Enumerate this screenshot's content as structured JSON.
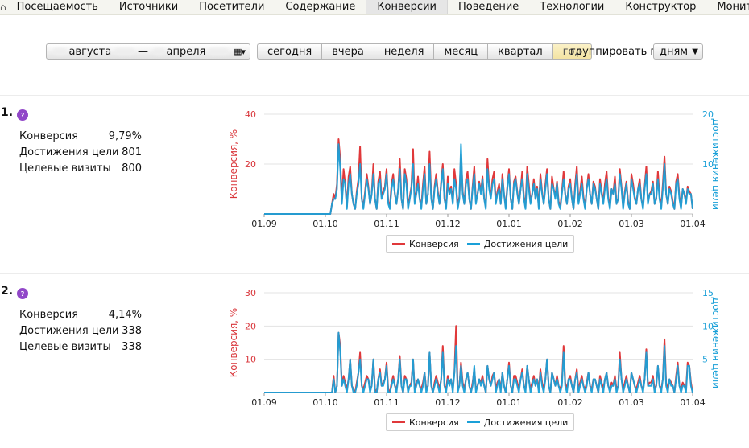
{
  "nav": {
    "tabs": [
      {
        "label": "Посещаемость"
      },
      {
        "label": "Источники"
      },
      {
        "label": "Посетители"
      },
      {
        "label": "Содержание"
      },
      {
        "label": "Конверсии",
        "active": true
      },
      {
        "label": "Поведение"
      },
      {
        "label": "Технологии"
      },
      {
        "label": "Конструктор"
      },
      {
        "label": "Мониторинг"
      }
    ]
  },
  "filters": {
    "range_from_month": "августа",
    "range_dash": "—",
    "range_to_month": "апреля",
    "presets": [
      {
        "label": "сегодня"
      },
      {
        "label": "вчера"
      },
      {
        "label": "неделя"
      },
      {
        "label": "месяц"
      },
      {
        "label": "квартал"
      },
      {
        "label": "год",
        "active": true
      }
    ],
    "group_label": "группировать по",
    "group_value": "дням"
  },
  "goals": [
    {
      "number": "1.",
      "badge": "?",
      "metrics": [
        {
          "label": "Конверсия",
          "value": "9,79%"
        },
        {
          "label": "Достижения цели",
          "value": "801"
        },
        {
          "label": "Целевые визиты",
          "value": "800"
        }
      ]
    },
    {
      "number": "2.",
      "badge": "?",
      "metrics": [
        {
          "label": "Конверсия",
          "value": "4,14%"
        },
        {
          "label": "Достижения цели",
          "value": "338"
        },
        {
          "label": "Целевые визиты",
          "value": "338"
        }
      ]
    }
  ],
  "colors": {
    "conversion": "#e0383a",
    "goals": "#1aa0d8"
  },
  "chart_data": [
    {
      "type": "line",
      "x_ticks": [
        "01.09",
        "01.10",
        "01.11",
        "01.12",
        "01.01",
        "01.02",
        "01.03",
        "01.04"
      ],
      "ylabel": "Конверсия, %",
      "y2label": "Достижения цели",
      "ylim": [
        0,
        40
      ],
      "y2lim": [
        0,
        20
      ],
      "y_ticks": [
        "40",
        "20"
      ],
      "y2_ticks": [
        "20",
        "10"
      ],
      "legend": "bottom",
      "series": [
        {
          "name": "Конверсия",
          "axis": "left",
          "color": "#e0383a",
          "values": [
            0,
            0,
            0,
            0,
            0,
            0,
            0,
            0,
            0,
            0,
            0,
            0,
            0,
            0,
            0,
            0,
            0,
            0,
            0,
            0,
            0,
            0,
            0,
            0,
            0,
            0,
            0,
            0,
            0,
            0,
            0,
            0,
            0,
            0,
            0,
            0,
            0,
            0,
            0,
            0,
            0,
            4,
            8,
            6,
            12,
            30,
            22,
            5,
            18,
            12,
            3,
            15,
            19,
            8,
            4,
            2,
            9,
            14,
            27,
            6,
            3,
            9,
            16,
            11,
            4,
            8,
            20,
            6,
            2,
            13,
            17,
            7,
            9,
            11,
            18,
            5,
            3,
            12,
            16,
            8,
            4,
            10,
            22,
            6,
            2,
            18,
            14,
            3,
            7,
            11,
            26,
            5,
            9,
            15,
            6,
            3,
            12,
            19,
            4,
            8,
            25,
            7,
            2,
            11,
            16,
            9,
            4,
            13,
            20,
            6,
            3,
            15,
            8,
            11,
            5,
            18,
            12,
            3,
            7,
            24,
            9,
            4,
            14,
            17,
            6,
            2,
            11,
            19,
            5,
            8,
            13,
            9,
            15,
            6,
            3,
            22,
            11,
            7,
            14,
            17,
            5,
            9,
            12,
            4,
            16,
            8,
            3,
            11,
            18,
            6,
            2,
            13,
            15,
            9,
            4,
            10,
            17,
            7,
            3,
            19,
            12,
            5,
            8,
            14,
            6,
            11,
            3,
            16,
            9,
            4,
            12,
            18,
            6,
            2,
            15,
            10,
            7,
            13,
            5,
            3,
            9,
            17,
            8,
            4,
            11,
            14,
            6,
            2,
            12,
            19,
            5,
            9,
            15,
            7,
            3,
            10,
            16,
            8,
            4,
            13,
            11,
            6,
            2,
            14,
            9,
            5,
            12,
            17,
            7,
            3,
            10,
            8,
            15,
            4,
            6,
            18,
            11,
            3,
            9,
            13,
            5,
            2,
            16,
            12,
            7,
            4,
            10,
            14,
            6,
            3,
            11,
            19,
            5,
            8,
            9,
            13,
            4,
            6,
            17,
            7,
            3,
            12,
            23,
            8,
            4,
            11,
            9,
            5,
            2,
            13,
            16,
            7,
            3,
            10,
            8,
            5,
            11,
            9,
            8,
            2
          ]
        },
        {
          "name": "Достижения цели",
          "axis": "right",
          "color": "#1aa0d8",
          "values": [
            0,
            0,
            0,
            0,
            0,
            0,
            0,
            0,
            0,
            0,
            0,
            0,
            0,
            0,
            0,
            0,
            0,
            0,
            0,
            0,
            0,
            0,
            0,
            0,
            0,
            0,
            0,
            0,
            0,
            0,
            0,
            0,
            0,
            0,
            0,
            0,
            0,
            0,
            0,
            0,
            0,
            2,
            3,
            3,
            5,
            14,
            9,
            2,
            7,
            6,
            1,
            6,
            8,
            4,
            2,
            1,
            4,
            6,
            10,
            3,
            1,
            4,
            7,
            5,
            2,
            4,
            8,
            3,
            1,
            6,
            7,
            3,
            4,
            5,
            8,
            2,
            1,
            5,
            7,
            4,
            2,
            5,
            9,
            3,
            1,
            8,
            6,
            1,
            3,
            5,
            10,
            2,
            4,
            6,
            3,
            1,
            5,
            8,
            2,
            4,
            10,
            3,
            1,
            5,
            7,
            4,
            2,
            6,
            9,
            3,
            1,
            6,
            4,
            5,
            2,
            7,
            5,
            1,
            3,
            14,
            4,
            2,
            6,
            7,
            3,
            1,
            5,
            8,
            2,
            4,
            6,
            4,
            7,
            3,
            1,
            9,
            5,
            3,
            6,
            7,
            2,
            4,
            5,
            2,
            7,
            4,
            1,
            5,
            8,
            3,
            1,
            6,
            7,
            4,
            2,
            5,
            7,
            3,
            1,
            8,
            5,
            2,
            4,
            6,
            3,
            5,
            1,
            7,
            4,
            2,
            5,
            8,
            3,
            1,
            6,
            5,
            3,
            6,
            2,
            1,
            4,
            7,
            4,
            2,
            5,
            6,
            3,
            1,
            5,
            8,
            2,
            4,
            6,
            3,
            1,
            5,
            7,
            4,
            2,
            6,
            5,
            3,
            1,
            6,
            4,
            2,
            5,
            7,
            3,
            1,
            5,
            4,
            6,
            2,
            3,
            8,
            5,
            1,
            4,
            6,
            2,
            1,
            7,
            5,
            3,
            2,
            5,
            6,
            3,
            1,
            5,
            8,
            2,
            4,
            4,
            6,
            2,
            3,
            7,
            3,
            1,
            5,
            10,
            4,
            2,
            5,
            4,
            2,
            1,
            6,
            7,
            3,
            1,
            5,
            4,
            2,
            5,
            4,
            4,
            1
          ]
        }
      ]
    },
    {
      "type": "line",
      "x_ticks": [
        "01.09",
        "01.10",
        "01.11",
        "01.12",
        "01.01",
        "01.02",
        "01.03",
        "01.04"
      ],
      "ylabel": "Конверсия, %",
      "y2label": "Достижения цели",
      "ylim": [
        0,
        30
      ],
      "y2lim": [
        0,
        15
      ],
      "y_ticks": [
        "30",
        "20",
        "10"
      ],
      "y2_ticks": [
        "15",
        "10",
        "5"
      ],
      "legend": "bottom",
      "series": [
        {
          "name": "Конверсия",
          "axis": "left",
          "color": "#e0383a",
          "values": [
            0,
            0,
            0,
            0,
            0,
            0,
            0,
            0,
            0,
            0,
            0,
            0,
            0,
            0,
            0,
            0,
            0,
            0,
            0,
            0,
            0,
            0,
            0,
            0,
            0,
            0,
            0,
            0,
            0,
            0,
            0,
            0,
            0,
            0,
            0,
            0,
            0,
            0,
            0,
            0,
            0,
            0,
            5,
            0,
            2,
            18,
            14,
            2,
            5,
            3,
            1,
            4,
            10,
            2,
            1,
            0,
            3,
            6,
            12,
            2,
            1,
            3,
            5,
            4,
            1,
            2,
            10,
            1,
            0,
            4,
            7,
            2,
            3,
            4,
            9,
            1,
            0,
            3,
            5,
            2,
            1,
            4,
            11,
            2,
            0,
            5,
            4,
            1,
            2,
            3,
            10,
            1,
            3,
            4,
            2,
            1,
            3,
            6,
            1,
            2,
            12,
            2,
            0,
            3,
            5,
            3,
            1,
            4,
            14,
            2,
            1,
            5,
            3,
            4,
            1,
            6,
            20,
            1,
            2,
            9,
            3,
            1,
            4,
            6,
            2,
            0,
            3,
            7,
            1,
            2,
            4,
            3,
            5,
            2,
            0,
            8,
            4,
            2,
            5,
            6,
            1,
            3,
            4,
            1,
            6,
            2,
            0,
            4,
            9,
            2,
            0,
            5,
            5,
            3,
            1,
            4,
            7,
            2,
            1,
            8,
            4,
            1,
            3,
            5,
            2,
            4,
            1,
            7,
            3,
            1,
            4,
            10,
            2,
            0,
            6,
            4,
            2,
            5,
            2,
            1,
            3,
            14,
            3,
            1,
            4,
            5,
            2,
            0,
            4,
            7,
            1,
            3,
            5,
            2,
            1,
            3,
            6,
            2,
            1,
            4,
            4,
            2,
            0,
            5,
            3,
            1,
            4,
            6,
            2,
            1,
            3,
            2,
            5,
            1,
            2,
            12,
            4,
            1,
            3,
            5,
            2,
            0,
            6,
            4,
            2,
            1,
            3,
            5,
            2,
            1,
            4,
            13,
            2,
            3,
            3,
            5,
            1,
            2,
            8,
            2,
            1,
            4,
            16,
            3,
            1,
            4,
            3,
            2,
            0,
            5,
            9,
            2,
            1,
            3,
            2,
            1,
            9,
            8,
            3,
            0
          ]
        },
        {
          "name": "Достижения цели",
          "axis": "right",
          "color": "#1aa0d8",
          "values": [
            0,
            0,
            0,
            0,
            0,
            0,
            0,
            0,
            0,
            0,
            0,
            0,
            0,
            0,
            0,
            0,
            0,
            0,
            0,
            0,
            0,
            0,
            0,
            0,
            0,
            0,
            0,
            0,
            0,
            0,
            0,
            0,
            0,
            0,
            0,
            0,
            0,
            0,
            0,
            0,
            0,
            0,
            2,
            0,
            1,
            9,
            6,
            1,
            2,
            1,
            0,
            2,
            5,
            1,
            0,
            0,
            1,
            3,
            5,
            1,
            0,
            1,
            2,
            2,
            0,
            1,
            5,
            0,
            0,
            2,
            3,
            1,
            1,
            2,
            4,
            0,
            0,
            1,
            2,
            1,
            0,
            2,
            5,
            1,
            0,
            2,
            2,
            0,
            1,
            1,
            5,
            0,
            1,
            2,
            1,
            0,
            1,
            3,
            0,
            1,
            6,
            1,
            0,
            1,
            2,
            1,
            0,
            2,
            6,
            1,
            0,
            2,
            1,
            2,
            0,
            3,
            7,
            0,
            1,
            4,
            1,
            0,
            2,
            3,
            1,
            0,
            1,
            4,
            0,
            1,
            2,
            1,
            2,
            1,
            0,
            4,
            2,
            1,
            2,
            3,
            0,
            1,
            2,
            0,
            3,
            1,
            0,
            2,
            4,
            1,
            0,
            2,
            2,
            1,
            0,
            2,
            3,
            1,
            0,
            4,
            2,
            0,
            1,
            2,
            1,
            2,
            0,
            3,
            1,
            0,
            2,
            5,
            1,
            0,
            3,
            2,
            1,
            2,
            1,
            0,
            1,
            6,
            1,
            0,
            2,
            2,
            1,
            0,
            2,
            3,
            0,
            1,
            2,
            1,
            0,
            1,
            3,
            1,
            0,
            2,
            2,
            1,
            0,
            2,
            1,
            0,
            2,
            3,
            1,
            0,
            1,
            1,
            2,
            0,
            1,
            5,
            2,
            0,
            1,
            2,
            1,
            0,
            3,
            2,
            1,
            0,
            1,
            2,
            1,
            0,
            2,
            6,
            1,
            1,
            1,
            2,
            0,
            1,
            4,
            1,
            0,
            2,
            7,
            1,
            0,
            2,
            1,
            1,
            0,
            2,
            4,
            1,
            0,
            1,
            1,
            0,
            4,
            4,
            1,
            0
          ]
        }
      ]
    }
  ]
}
